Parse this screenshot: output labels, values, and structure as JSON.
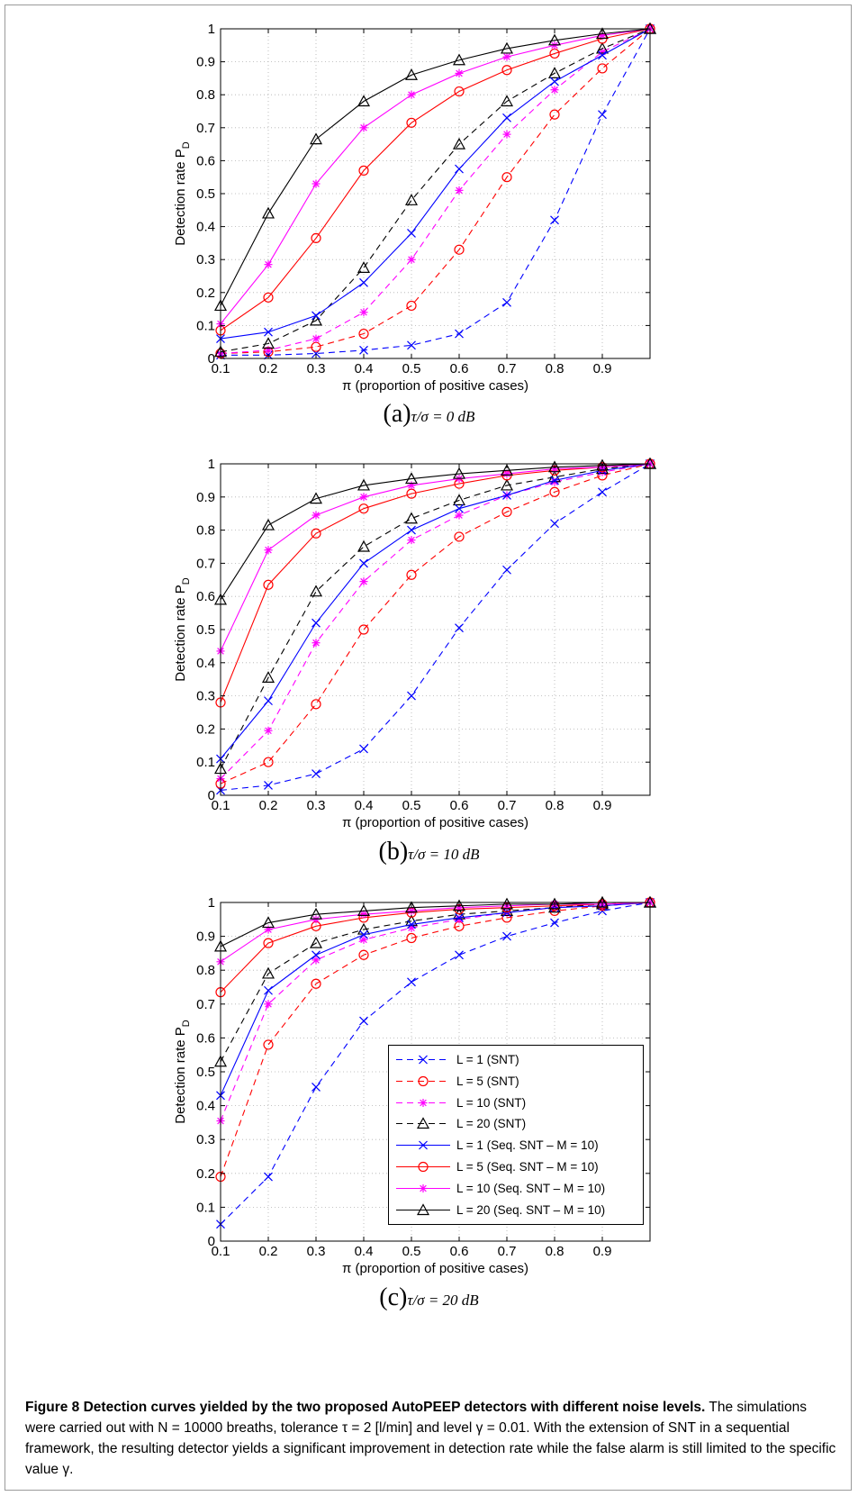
{
  "figure": {
    "caption_title": "Figure 8 Detection curves yielded by the two proposed AutoPEEP detectors with different noise levels.",
    "caption_body": "The simulations were carried out with N = 10000 breaths, tolerance τ = 2 [l/min] and level γ = 0.01. With the extension of SNT in a sequential framework, the resulting detector yields a significant improvement in detection rate while the false alarm is still limited to the specific value γ."
  },
  "colors": {
    "blue": "#0000ff",
    "red": "#ff0000",
    "magenta": "#ff00ff",
    "black": "#000000"
  },
  "legend": [
    {
      "label": "L = 1 (SNT)",
      "color": "#0000ff",
      "dash": true,
      "marker": "x"
    },
    {
      "label": "L = 5 (SNT)",
      "color": "#ff0000",
      "dash": true,
      "marker": "o"
    },
    {
      "label": "L = 10 (SNT)",
      "color": "#ff00ff",
      "dash": true,
      "marker": "*"
    },
    {
      "label": "L = 20 (SNT)",
      "color": "#000000",
      "dash": true,
      "marker": "^"
    },
    {
      "label": "L = 1 (Seq. SNT – M = 10)",
      "color": "#0000ff",
      "dash": false,
      "marker": "x"
    },
    {
      "label": "L = 5 (Seq. SNT – M = 10)",
      "color": "#ff0000",
      "dash": false,
      "marker": "o"
    },
    {
      "label": "L = 10 (Seq. SNT – M = 10)",
      "color": "#ff00ff",
      "dash": false,
      "marker": "*"
    },
    {
      "label": "L = 20 (Seq. SNT – M = 10)",
      "color": "#000000",
      "dash": false,
      "marker": "^"
    }
  ],
  "chart_data": [
    {
      "type": "line",
      "panel": "(a)",
      "subtitle": "τ/σ = 0 dB",
      "xlabel": "π (proportion of positive cases)",
      "ylabel": "Detection rate P_D",
      "xlim": [
        0.1,
        1.0
      ],
      "ylim": [
        0,
        1
      ],
      "xticks": [
        "0.1",
        "0.2",
        "0.3",
        "0.4",
        "0.5",
        "0.6",
        "0.7",
        "0.8",
        "0.9"
      ],
      "yticks": [
        "0",
        "0.1",
        "0.2",
        "0.3",
        "0.4",
        "0.5",
        "0.6",
        "0.7",
        "0.8",
        "0.9",
        "1"
      ],
      "grid": true,
      "x": [
        0.1,
        0.2,
        0.3,
        0.4,
        0.5,
        0.6,
        0.7,
        0.8,
        0.9,
        1.0
      ],
      "series": [
        {
          "name": "L = 1 (SNT)",
          "values": [
            0.01,
            0.01,
            0.015,
            0.025,
            0.04,
            0.075,
            0.17,
            0.42,
            0.74,
            1.0
          ]
        },
        {
          "name": "L = 5 (SNT)",
          "values": [
            0.015,
            0.02,
            0.035,
            0.075,
            0.16,
            0.33,
            0.55,
            0.74,
            0.88,
            1.0
          ]
        },
        {
          "name": "L = 10 (SNT)",
          "values": [
            0.015,
            0.025,
            0.06,
            0.14,
            0.3,
            0.51,
            0.68,
            0.815,
            0.93,
            1.0
          ]
        },
        {
          "name": "L = 20 (SNT)",
          "values": [
            0.02,
            0.045,
            0.115,
            0.275,
            0.48,
            0.65,
            0.78,
            0.865,
            0.94,
            1.0
          ]
        },
        {
          "name": "L = 1 (Seq. SNT – M = 10)",
          "values": [
            0.06,
            0.08,
            0.13,
            0.23,
            0.38,
            0.575,
            0.73,
            0.84,
            0.92,
            1.0
          ]
        },
        {
          "name": "L = 5 (Seq. SNT – M = 10)",
          "values": [
            0.085,
            0.185,
            0.365,
            0.57,
            0.715,
            0.81,
            0.875,
            0.925,
            0.97,
            1.0
          ]
        },
        {
          "name": "L = 10 (Seq. SNT – M = 10)",
          "values": [
            0.105,
            0.285,
            0.53,
            0.7,
            0.8,
            0.865,
            0.915,
            0.95,
            0.98,
            1.0
          ]
        },
        {
          "name": "L = 20 (Seq. SNT – M = 10)",
          "values": [
            0.16,
            0.44,
            0.665,
            0.78,
            0.86,
            0.905,
            0.94,
            0.965,
            0.985,
            1.0
          ]
        }
      ]
    },
    {
      "type": "line",
      "panel": "(b)",
      "subtitle": "τ/σ = 10 dB",
      "xlabel": "π (proportion of positive cases)",
      "ylabel": "Detection rate P_D",
      "xlim": [
        0.1,
        1.0
      ],
      "ylim": [
        0,
        1
      ],
      "xticks": [
        "0.1",
        "0.2",
        "0.3",
        "0.4",
        "0.5",
        "0.6",
        "0.7",
        "0.8",
        "0.9"
      ],
      "yticks": [
        "0",
        "0.1",
        "0.2",
        "0.3",
        "0.4",
        "0.5",
        "0.6",
        "0.7",
        "0.8",
        "0.9",
        "1"
      ],
      "grid": true,
      "x": [
        0.1,
        0.2,
        0.3,
        0.4,
        0.5,
        0.6,
        0.7,
        0.8,
        0.9,
        1.0
      ],
      "series": [
        {
          "name": "L = 1 (SNT)",
          "values": [
            0.015,
            0.03,
            0.065,
            0.14,
            0.3,
            0.505,
            0.68,
            0.82,
            0.915,
            1.0
          ]
        },
        {
          "name": "L = 5 (SNT)",
          "values": [
            0.035,
            0.1,
            0.275,
            0.5,
            0.665,
            0.78,
            0.855,
            0.915,
            0.965,
            1.0
          ]
        },
        {
          "name": "L = 10 (SNT)",
          "values": [
            0.05,
            0.195,
            0.46,
            0.645,
            0.77,
            0.845,
            0.905,
            0.945,
            0.975,
            1.0
          ]
        },
        {
          "name": "L = 20 (SNT)",
          "values": [
            0.08,
            0.355,
            0.615,
            0.75,
            0.835,
            0.89,
            0.935,
            0.96,
            0.985,
            1.0
          ]
        },
        {
          "name": "L = 1 (Seq. SNT – M = 10)",
          "values": [
            0.11,
            0.285,
            0.52,
            0.7,
            0.8,
            0.865,
            0.905,
            0.95,
            0.98,
            1.0
          ]
        },
        {
          "name": "L = 5 (Seq. SNT – M = 10)",
          "values": [
            0.28,
            0.635,
            0.79,
            0.865,
            0.91,
            0.94,
            0.965,
            0.98,
            0.99,
            1.0
          ]
        },
        {
          "name": "L = 10 (Seq. SNT – M = 10)",
          "values": [
            0.435,
            0.74,
            0.845,
            0.9,
            0.935,
            0.955,
            0.97,
            0.985,
            0.99,
            1.0
          ]
        },
        {
          "name": "L = 20 (Seq. SNT – M = 10)",
          "values": [
            0.59,
            0.815,
            0.895,
            0.935,
            0.955,
            0.97,
            0.98,
            0.99,
            0.995,
            1.0
          ]
        }
      ]
    },
    {
      "type": "line",
      "panel": "(c)",
      "subtitle": "τ/σ = 20 dB",
      "xlabel": "π (proportion of positive cases)",
      "ylabel": "Detection rate P_D",
      "xlim": [
        0.1,
        1.0
      ],
      "ylim": [
        0,
        1
      ],
      "xticks": [
        "0.1",
        "0.2",
        "0.3",
        "0.4",
        "0.5",
        "0.6",
        "0.7",
        "0.8",
        "0.9"
      ],
      "yticks": [
        "0",
        "0.1",
        "0.2",
        "0.3",
        "0.4",
        "0.5",
        "0.6",
        "0.7",
        "0.8",
        "0.9",
        "1"
      ],
      "grid": true,
      "legend_position": "lower-right",
      "x": [
        0.1,
        0.2,
        0.3,
        0.4,
        0.5,
        0.6,
        0.7,
        0.8,
        0.9,
        1.0
      ],
      "series": [
        {
          "name": "L = 1 (SNT)",
          "values": [
            0.05,
            0.19,
            0.455,
            0.65,
            0.765,
            0.845,
            0.9,
            0.94,
            0.975,
            1.0
          ]
        },
        {
          "name": "L = 5 (SNT)",
          "values": [
            0.19,
            0.58,
            0.76,
            0.845,
            0.895,
            0.93,
            0.955,
            0.975,
            0.99,
            1.0
          ]
        },
        {
          "name": "L = 10 (SNT)",
          "values": [
            0.355,
            0.7,
            0.83,
            0.89,
            0.925,
            0.95,
            0.97,
            0.985,
            0.99,
            1.0
          ]
        },
        {
          "name": "L = 20 (SNT)",
          "values": [
            0.53,
            0.79,
            0.88,
            0.92,
            0.945,
            0.965,
            0.975,
            0.985,
            0.995,
            1.0
          ]
        },
        {
          "name": "L = 1 (Seq. SNT – M = 10)",
          "values": [
            0.43,
            0.74,
            0.845,
            0.905,
            0.935,
            0.955,
            0.97,
            0.985,
            0.99,
            1.0
          ]
        },
        {
          "name": "L = 5 (Seq. SNT – M = 10)",
          "values": [
            0.735,
            0.88,
            0.93,
            0.955,
            0.97,
            0.98,
            0.985,
            0.99,
            0.995,
            1.0
          ]
        },
        {
          "name": "L = 10 (Seq. SNT – M = 10)",
          "values": [
            0.825,
            0.92,
            0.95,
            0.965,
            0.975,
            0.985,
            0.99,
            0.995,
            0.995,
            1.0
          ]
        },
        {
          "name": "L = 20 (Seq. SNT – M = 10)",
          "values": [
            0.87,
            0.94,
            0.965,
            0.975,
            0.985,
            0.99,
            0.995,
            0.995,
            1.0,
            1.0
          ]
        }
      ]
    }
  ]
}
